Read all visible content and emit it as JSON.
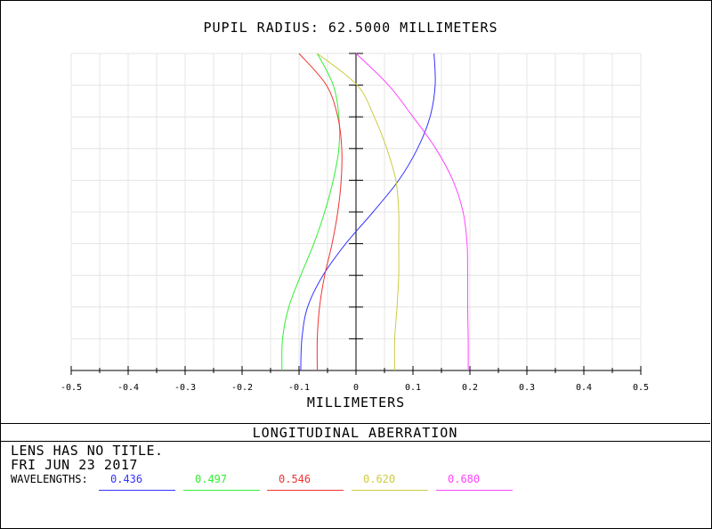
{
  "plot_title": "PUPIL RADIUS: 62.5000 MILLIMETERS",
  "x_axis_label": "MILLIMETERS",
  "panel_title": "LONGITUDINAL ABERRATION",
  "lens_title": "LENS HAS NO TITLE.",
  "date": "FRI JUN 23 2017",
  "wavelengths_label": "WAVELENGTHS:",
  "wavelengths": [
    {
      "label": "0.436",
      "color": "#3333ff"
    },
    {
      "label": "0.497",
      "color": "#33ee33"
    },
    {
      "label": "0.546",
      "color": "#ee3333"
    },
    {
      "label": "0.620",
      "color": "#cccc44"
    },
    {
      "label": "0.680",
      "color": "#ff44ff"
    }
  ],
  "chart_data": {
    "type": "line",
    "title": "PUPIL RADIUS: 62.5000 MILLIMETERS",
    "xlabel": "MILLIMETERS",
    "ylabel": "",
    "xlim": [
      -0.5,
      0.5
    ],
    "ylim": [
      0,
      1
    ],
    "x_ticks": [
      "-0.5",
      "-0.4",
      "-0.3",
      "-0.2",
      "-0.1",
      "0",
      "0.1",
      "0.2",
      "0.3",
      "0.4",
      "0.5"
    ],
    "grid": true,
    "series": [
      {
        "name": "0.436",
        "color": "#3333ff",
        "points": [
          [
            -0.097,
            0.0
          ],
          [
            -0.095,
            0.1
          ],
          [
            -0.085,
            0.2
          ],
          [
            -0.058,
            0.3
          ],
          [
            -0.018,
            0.4
          ],
          [
            0.03,
            0.5
          ],
          [
            0.075,
            0.6
          ],
          [
            0.108,
            0.7
          ],
          [
            0.13,
            0.8
          ],
          [
            0.139,
            0.9
          ],
          [
            0.137,
            1.0
          ]
        ]
      },
      {
        "name": "0.497",
        "color": "#33ee33",
        "points": [
          [
            -0.13,
            0.0
          ],
          [
            -0.129,
            0.1
          ],
          [
            -0.118,
            0.2
          ],
          [
            -0.097,
            0.3
          ],
          [
            -0.074,
            0.4
          ],
          [
            -0.055,
            0.5
          ],
          [
            -0.04,
            0.6
          ],
          [
            -0.03,
            0.7
          ],
          [
            -0.03,
            0.8
          ],
          [
            -0.04,
            0.9
          ],
          [
            -0.068,
            1.0
          ]
        ]
      },
      {
        "name": "0.546",
        "color": "#ee3333",
        "points": [
          [
            -0.068,
            0.0
          ],
          [
            -0.068,
            0.1
          ],
          [
            -0.064,
            0.2
          ],
          [
            -0.055,
            0.3
          ],
          [
            -0.042,
            0.4
          ],
          [
            -0.032,
            0.5
          ],
          [
            -0.026,
            0.6
          ],
          [
            -0.025,
            0.7
          ],
          [
            -0.032,
            0.8
          ],
          [
            -0.052,
            0.9
          ],
          [
            -0.1,
            1.0
          ]
        ]
      },
      {
        "name": "0.620",
        "color": "#cccc44",
        "points": [
          [
            0.068,
            0.0
          ],
          [
            0.068,
            0.1
          ],
          [
            0.072,
            0.2
          ],
          [
            0.075,
            0.3
          ],
          [
            0.075,
            0.4
          ],
          [
            0.075,
            0.5
          ],
          [
            0.07,
            0.6
          ],
          [
            0.054,
            0.7
          ],
          [
            0.032,
            0.8
          ],
          [
            0.002,
            0.9
          ],
          [
            -0.068,
            1.0
          ]
        ]
      },
      {
        "name": "0.680",
        "color": "#ff44ff",
        "points": [
          [
            0.197,
            0.0
          ],
          [
            0.197,
            0.1
          ],
          [
            0.196,
            0.2
          ],
          [
            0.196,
            0.3
          ],
          [
            0.195,
            0.4
          ],
          [
            0.188,
            0.5
          ],
          [
            0.17,
            0.6
          ],
          [
            0.14,
            0.7
          ],
          [
            0.1,
            0.8
          ],
          [
            0.057,
            0.9
          ],
          [
            0.0,
            1.0
          ]
        ]
      }
    ]
  }
}
